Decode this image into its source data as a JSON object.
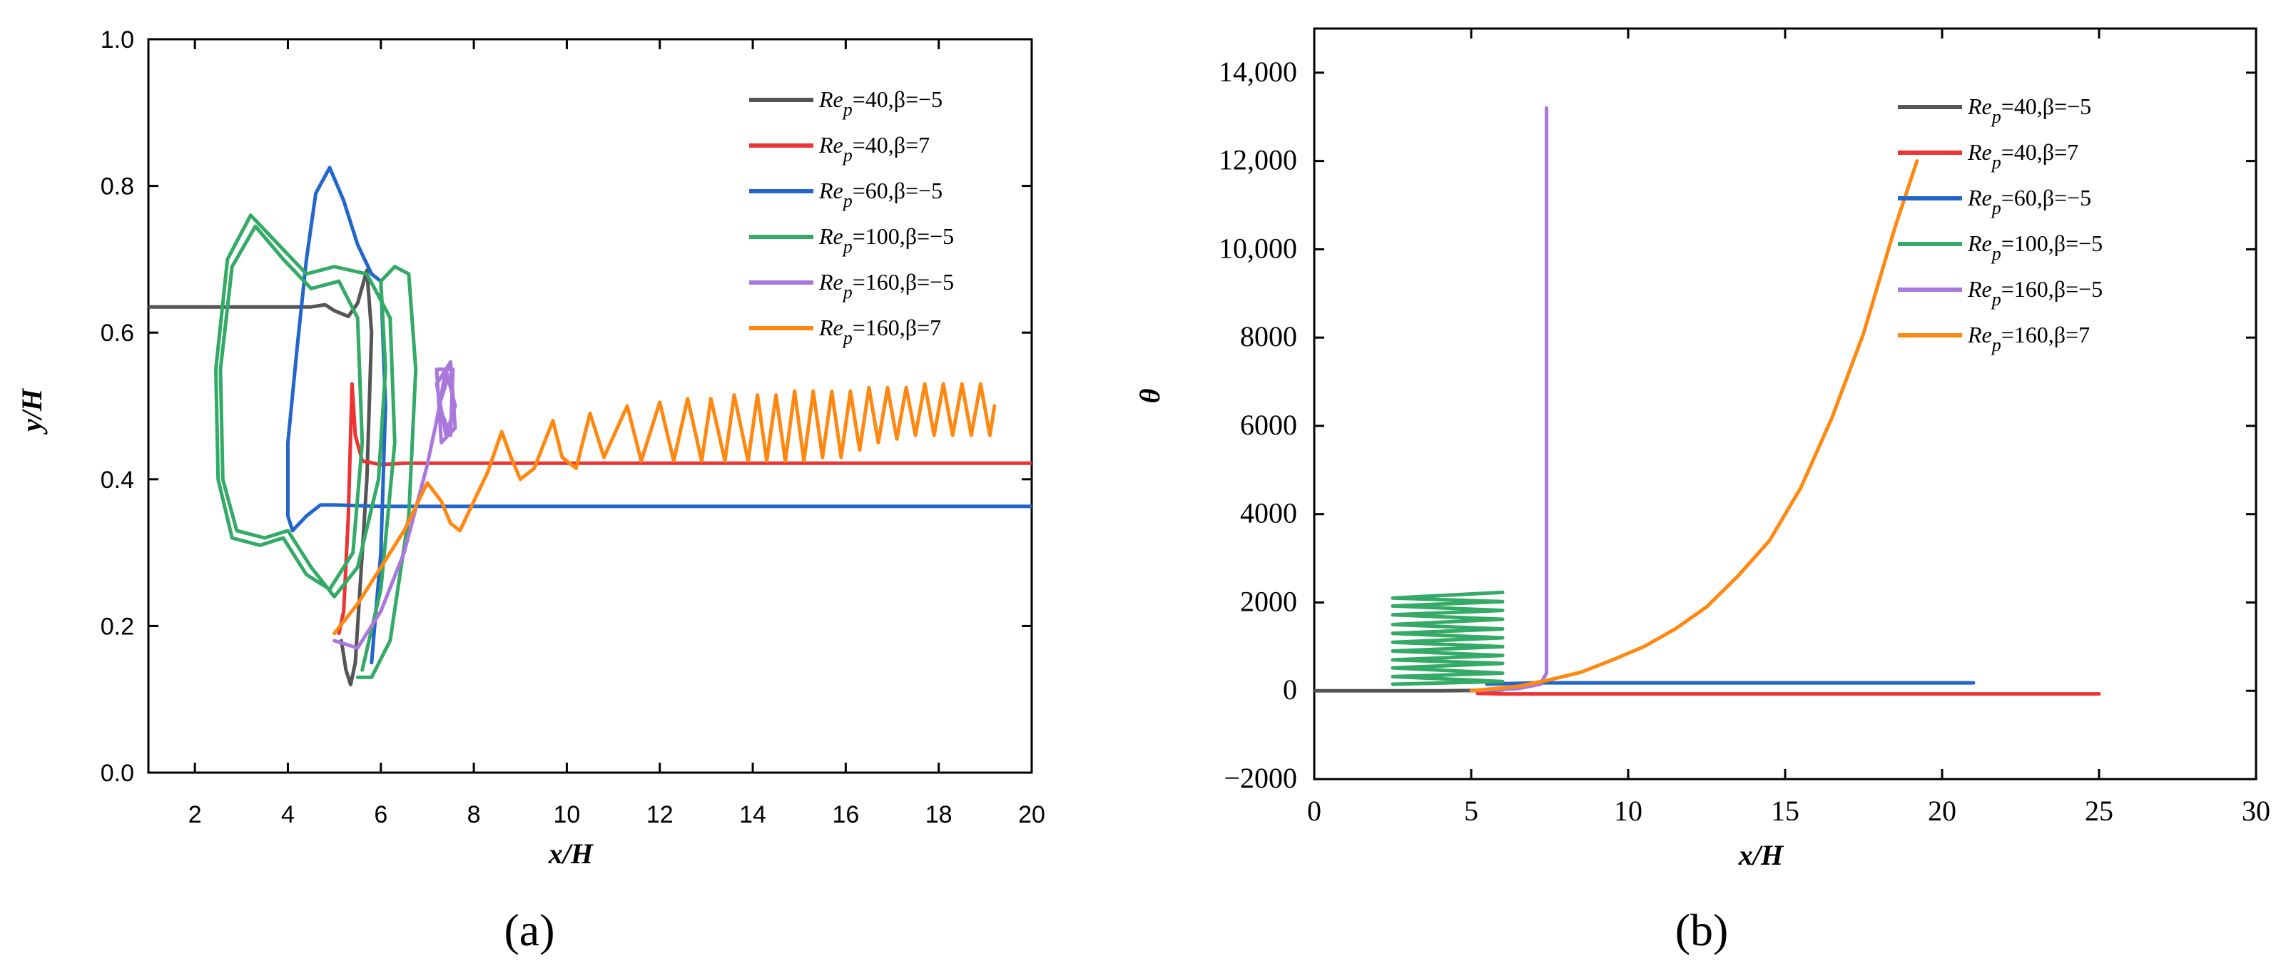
{
  "chart_data": [
    {
      "type": "line",
      "panel_label": "(a)",
      "title": "",
      "xlabel": "x/H",
      "ylabel": "y/H",
      "xlim": [
        1,
        20
      ],
      "ylim": [
        0,
        1
      ],
      "xticks": [
        2,
        4,
        6,
        8,
        10,
        12,
        14,
        16,
        18,
        20
      ],
      "yticks": [
        0.0,
        0.2,
        0.4,
        0.6,
        0.8,
        1.0
      ],
      "xtick_labels": [
        "2",
        "4",
        "6",
        "8",
        "10",
        "12",
        "14",
        "16",
        "18",
        "20"
      ],
      "ytick_labels": [
        "0.0",
        "0.2",
        "0.4",
        "0.6",
        "0.8",
        "1.0"
      ],
      "legend_position": "top-right",
      "series": [
        {
          "name": "Rep=40,β=−5",
          "legend_prefix": "Re",
          "legend_sub": "p",
          "legend_rest": "=40,β=−5",
          "color": "#555555",
          "points": [
            [
              1,
              0.635
            ],
            [
              4.5,
              0.635
            ],
            [
              4.8,
              0.638
            ],
            [
              5.0,
              0.63
            ],
            [
              5.3,
              0.622
            ],
            [
              5.5,
              0.64
            ],
            [
              5.7,
              0.685
            ],
            [
              5.8,
              0.6
            ],
            [
              5.7,
              0.4
            ],
            [
              5.55,
              0.25
            ],
            [
              5.45,
              0.15
            ],
            [
              5.35,
              0.12
            ],
            [
              5.25,
              0.14
            ],
            [
              5.15,
              0.18
            ]
          ]
        },
        {
          "name": "Rep=40,β=7",
          "legend_prefix": "Re",
          "legend_sub": "p",
          "legend_rest": "=40,β=7",
          "color": "#ee3333",
          "points": [
            [
              5.1,
              0.19
            ],
            [
              5.2,
              0.22
            ],
            [
              5.3,
              0.35
            ],
            [
              5.38,
              0.53
            ],
            [
              5.45,
              0.46
            ],
            [
              5.6,
              0.425
            ],
            [
              6.0,
              0.42
            ],
            [
              6.5,
              0.422
            ],
            [
              20,
              0.422
            ]
          ]
        },
        {
          "name": "Rep=60,β=−5",
          "legend_prefix": "Re",
          "legend_sub": "p",
          "legend_rest": "=60,β=−5",
          "color": "#2266cc",
          "points": [
            [
              5.8,
              0.15
            ],
            [
              6.0,
              0.3
            ],
            [
              6.1,
              0.5
            ],
            [
              6.0,
              0.67
            ],
            [
              5.8,
              0.68
            ],
            [
              5.5,
              0.72
            ],
            [
              5.2,
              0.78
            ],
            [
              4.9,
              0.825
            ],
            [
              4.6,
              0.79
            ],
            [
              4.4,
              0.7
            ],
            [
              4.2,
              0.58
            ],
            [
              4.0,
              0.45
            ],
            [
              4.0,
              0.35
            ],
            [
              4.1,
              0.33
            ],
            [
              4.4,
              0.35
            ],
            [
              4.7,
              0.365
            ],
            [
              5.0,
              0.365
            ],
            [
              6.0,
              0.363
            ],
            [
              20,
              0.363
            ]
          ]
        },
        {
          "name": "Rep=100,β=−5",
          "legend_prefix": "Re",
          "legend_sub": "p",
          "legend_rest": "=100,β=−5",
          "color": "#33aa66",
          "points": [
            [
              5.6,
              0.14
            ],
            [
              6.0,
              0.25
            ],
            [
              6.3,
              0.45
            ],
            [
              6.2,
              0.62
            ],
            [
              5.7,
              0.68
            ],
            [
              5.0,
              0.69
            ],
            [
              4.4,
              0.68
            ],
            [
              3.8,
              0.72
            ],
            [
              3.2,
              0.76
            ],
            [
              2.7,
              0.7
            ],
            [
              2.45,
              0.55
            ],
            [
              2.5,
              0.4
            ],
            [
              2.8,
              0.32
            ],
            [
              3.4,
              0.31
            ],
            [
              3.9,
              0.32
            ],
            [
              4.4,
              0.27
            ],
            [
              4.9,
              0.25
            ],
            [
              5.4,
              0.3
            ],
            [
              5.6,
              0.45
            ],
            [
              5.5,
              0.62
            ],
            [
              5.1,
              0.67
            ],
            [
              4.5,
              0.66
            ],
            [
              3.9,
              0.7
            ],
            [
              3.3,
              0.745
            ],
            [
              2.8,
              0.69
            ],
            [
              2.55,
              0.55
            ],
            [
              2.6,
              0.4
            ],
            [
              2.9,
              0.33
            ],
            [
              3.5,
              0.32
            ],
            [
              4.0,
              0.33
            ],
            [
              4.5,
              0.28
            ],
            [
              5.0,
              0.24
            ],
            [
              5.5,
              0.28
            ],
            [
              5.95,
              0.4
            ],
            [
              6.1,
              0.55
            ],
            [
              6.0,
              0.67
            ],
            [
              6.3,
              0.69
            ],
            [
              6.6,
              0.68
            ],
            [
              6.75,
              0.55
            ],
            [
              6.6,
              0.35
            ],
            [
              6.2,
              0.18
            ],
            [
              5.8,
              0.13
            ],
            [
              5.5,
              0.13
            ]
          ]
        },
        {
          "name": "Rep=160,β=−5",
          "legend_prefix": "Re",
          "legend_sub": "p",
          "legend_rest": "=160,β=−5",
          "color": "#aa77dd",
          "points": [
            [
              5.0,
              0.18
            ],
            [
              5.5,
              0.17
            ],
            [
              6.0,
              0.22
            ],
            [
              6.5,
              0.3
            ],
            [
              7.0,
              0.42
            ],
            [
              7.2,
              0.48
            ],
            [
              7.4,
              0.55
            ],
            [
              7.6,
              0.5
            ],
            [
              7.4,
              0.46
            ],
            [
              7.2,
              0.53
            ],
            [
              7.5,
              0.56
            ],
            [
              7.6,
              0.47
            ],
            [
              7.3,
              0.45
            ],
            [
              7.2,
              0.55
            ],
            [
              7.55,
              0.55
            ],
            [
              7.5,
              0.46
            ],
            [
              7.25,
              0.5
            ],
            [
              7.45,
              0.54
            ]
          ]
        },
        {
          "name": "Rep=160,β=7",
          "legend_prefix": "Re",
          "legend_sub": "p",
          "legend_rest": "=160,β=7",
          "color": "#ff8811",
          "points": [
            [
              5.0,
              0.19
            ],
            [
              5.5,
              0.23
            ],
            [
              6.0,
              0.28
            ],
            [
              6.5,
              0.33
            ],
            [
              7.0,
              0.395
            ],
            [
              7.3,
              0.37
            ],
            [
              7.5,
              0.34
            ],
            [
              7.7,
              0.33
            ],
            [
              8.0,
              0.37
            ],
            [
              8.3,
              0.41
            ],
            [
              8.6,
              0.465
            ],
            [
              8.8,
              0.43
            ],
            [
              9.0,
              0.4
            ],
            [
              9.3,
              0.415
            ],
            [
              9.7,
              0.48
            ],
            [
              9.9,
              0.43
            ],
            [
              10.2,
              0.415
            ],
            [
              10.5,
              0.49
            ],
            [
              10.8,
              0.43
            ],
            [
              11.3,
              0.5
            ],
            [
              11.6,
              0.425
            ],
            [
              12.0,
              0.505
            ],
            [
              12.3,
              0.425
            ],
            [
              12.6,
              0.51
            ],
            [
              12.9,
              0.425
            ],
            [
              13.1,
              0.51
            ],
            [
              13.4,
              0.425
            ],
            [
              13.6,
              0.515
            ],
            [
              13.9,
              0.425
            ],
            [
              14.1,
              0.515
            ],
            [
              14.3,
              0.425
            ],
            [
              14.5,
              0.515
            ],
            [
              14.7,
              0.425
            ],
            [
              14.9,
              0.52
            ],
            [
              15.1,
              0.425
            ],
            [
              15.3,
              0.52
            ],
            [
              15.5,
              0.43
            ],
            [
              15.7,
              0.52
            ],
            [
              15.9,
              0.43
            ],
            [
              16.1,
              0.52
            ],
            [
              16.3,
              0.44
            ],
            [
              16.5,
              0.525
            ],
            [
              16.7,
              0.45
            ],
            [
              16.9,
              0.525
            ],
            [
              17.1,
              0.455
            ],
            [
              17.3,
              0.525
            ],
            [
              17.5,
              0.46
            ],
            [
              17.7,
              0.53
            ],
            [
              17.9,
              0.46
            ],
            [
              18.1,
              0.53
            ],
            [
              18.3,
              0.46
            ],
            [
              18.5,
              0.53
            ],
            [
              18.7,
              0.46
            ],
            [
              18.9,
              0.53
            ],
            [
              19.1,
              0.46
            ],
            [
              19.2,
              0.5
            ]
          ]
        }
      ]
    },
    {
      "type": "line",
      "panel_label": "(b)",
      "title": "",
      "xlabel": "x/H",
      "ylabel": "θ",
      "xlim": [
        0,
        30
      ],
      "ylim": [
        -2000,
        15000
      ],
      "xticks": [
        0,
        5,
        10,
        15,
        20,
        25,
        30
      ],
      "yticks": [
        -2000,
        0,
        2000,
        4000,
        6000,
        8000,
        10000,
        12000,
        14000
      ],
      "xtick_labels": [
        "0",
        "5",
        "10",
        "15",
        "20",
        "25",
        "30"
      ],
      "ytick_labels": [
        "−2000",
        "0",
        "2000",
        "4000",
        "6000",
        "8000",
        "10,000",
        "12,000",
        "14,000"
      ],
      "legend_position": "top-right",
      "series": [
        {
          "name": "Rep=40,β=−5",
          "legend_prefix": "Re",
          "legend_sub": "p",
          "legend_rest": "=40,β=−5",
          "color": "#555555",
          "points": [
            [
              0,
              0
            ],
            [
              2,
              0
            ],
            [
              4,
              0
            ],
            [
              5.5,
              10
            ],
            [
              6,
              20
            ]
          ]
        },
        {
          "name": "Rep=40,β=7",
          "legend_prefix": "Re",
          "legend_sub": "p",
          "legend_rest": "=40,β=7",
          "color": "#ee3333",
          "points": [
            [
              5.2,
              -60
            ],
            [
              6,
              -70
            ],
            [
              10,
              -70
            ],
            [
              15,
              -70
            ],
            [
              20,
              -70
            ],
            [
              25,
              -70
            ]
          ]
        },
        {
          "name": "Rep=60,β=−5",
          "legend_prefix": "Re",
          "legend_sub": "p",
          "legend_rest": "=60,β=−5",
          "color": "#2266cc",
          "points": [
            [
              5.5,
              150
            ],
            [
              7,
              180
            ],
            [
              10,
              180
            ],
            [
              15,
              180
            ],
            [
              21,
              180
            ]
          ]
        },
        {
          "name": "Rep=100,β=−5",
          "legend_prefix": "Re",
          "legend_sub": "p",
          "legend_rest": "=100,β=−5",
          "color": "#33aa66",
          "points": [
            [
              2.5,
              150
            ],
            [
              6,
              210
            ],
            [
              2.5,
              320
            ],
            [
              6,
              400
            ],
            [
              2.5,
              520
            ],
            [
              6,
              620
            ],
            [
              2.5,
              700
            ],
            [
              6,
              800
            ],
            [
              2.5,
              900
            ],
            [
              6,
              1000
            ],
            [
              2.5,
              1100
            ],
            [
              6,
              1200
            ],
            [
              2.5,
              1300
            ],
            [
              6,
              1400
            ],
            [
              2.5,
              1500
            ],
            [
              6,
              1620
            ],
            [
              2.5,
              1720
            ],
            [
              6,
              1820
            ],
            [
              2.5,
              1920
            ],
            [
              6,
              2020
            ],
            [
              2.5,
              2100
            ],
            [
              6,
              2230
            ]
          ]
        },
        {
          "name": "Rep=160,β=−5",
          "legend_prefix": "Re",
          "legend_sub": "p",
          "legend_rest": "=160,β=−5",
          "color": "#aa77dd",
          "points": [
            [
              5.0,
              0
            ],
            [
              6.5,
              50
            ],
            [
              7.2,
              150
            ],
            [
              7.4,
              400
            ],
            [
              7.4,
              13200
            ]
          ]
        },
        {
          "name": "Rep=160,β=7",
          "legend_prefix": "Re",
          "legend_sub": "p",
          "legend_rest": "=160,β=7",
          "color": "#ff8811",
          "points": [
            [
              5.0,
              0
            ],
            [
              6.5,
              100
            ],
            [
              7.5,
              250
            ],
            [
              8.5,
              420
            ],
            [
              9.5,
              700
            ],
            [
              10.5,
              1000
            ],
            [
              11.5,
              1400
            ],
            [
              12.5,
              1900
            ],
            [
              13.5,
              2600
            ],
            [
              14.5,
              3400
            ],
            [
              15.5,
              4600
            ],
            [
              16.5,
              6200
            ],
            [
              17.5,
              8100
            ],
            [
              18.5,
              10500
            ],
            [
              19.2,
              12000
            ]
          ]
        }
      ]
    }
  ]
}
